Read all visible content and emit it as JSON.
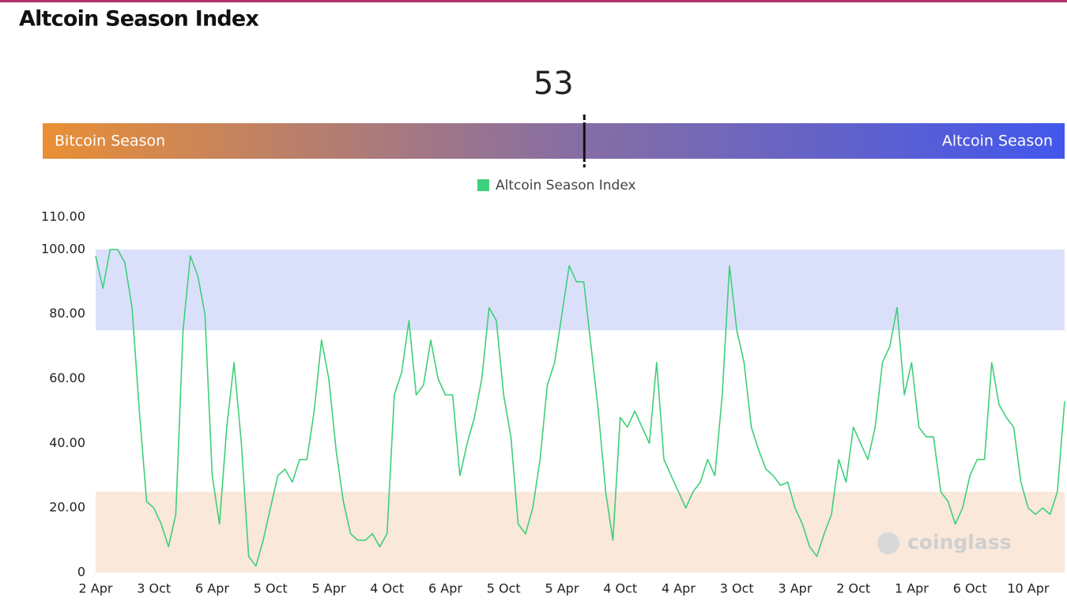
{
  "chart_data": {
    "type": "line",
    "title": "Altcoin Season Index",
    "gauge": {
      "value": 53,
      "range": [
        0,
        100
      ],
      "left_label": "Bitcoin Season",
      "right_label": "Altcoin Season",
      "colors": [
        "#e98f35",
        "#8a6fa0",
        "#4257ec"
      ]
    },
    "watermark": "coinglass",
    "categories": [
      "2 Apr",
      null,
      null,
      null,
      null,
      null,
      null,
      null,
      "3 Oct",
      null,
      null,
      null,
      null,
      null,
      null,
      null,
      "6 Apr",
      null,
      null,
      null,
      null,
      null,
      null,
      null,
      "5 Oct",
      null,
      null,
      null,
      null,
      null,
      null,
      null,
      "5 Apr",
      null,
      null,
      null,
      null,
      null,
      null,
      null,
      "4 Oct",
      null,
      null,
      null,
      null,
      null,
      null,
      null,
      "6 Apr",
      null,
      null,
      null,
      null,
      null,
      null,
      null,
      "5 Oct",
      null,
      null,
      null,
      null,
      null,
      null,
      null,
      "5 Apr",
      null,
      null,
      null,
      null,
      null,
      null,
      null,
      "4 Oct",
      null,
      null,
      null,
      null,
      null,
      null,
      null,
      "4 Apr",
      null,
      null,
      null,
      null,
      null,
      null,
      null,
      "3 Oct",
      null,
      null,
      null,
      null,
      null,
      null,
      null,
      "3 Apr",
      null,
      null,
      null,
      null,
      null,
      null,
      null,
      "2 Oct",
      null,
      null,
      null,
      null,
      null,
      null,
      null,
      "1 Apr",
      null,
      null,
      null,
      null,
      null,
      null,
      null,
      "6 Oct",
      null,
      null,
      null,
      null,
      null,
      null,
      null,
      "10 Apr",
      null,
      null,
      null,
      null,
      null
    ],
    "series": [
      {
        "name": "Altcoin Season Index",
        "color": "#3ecf7a",
        "values": [
          98,
          88,
          100,
          100,
          96,
          82,
          50,
          22,
          20,
          15,
          8,
          18,
          75,
          98,
          92,
          80,
          30,
          15,
          45,
          65,
          40,
          5,
          2,
          10,
          20,
          30,
          32,
          28,
          35,
          35,
          50,
          72,
          60,
          38,
          22,
          12,
          10,
          10,
          12,
          8,
          12,
          55,
          62,
          78,
          55,
          58,
          72,
          60,
          55,
          55,
          30,
          40,
          48,
          60,
          82,
          78,
          55,
          42,
          15,
          12,
          20,
          35,
          58,
          65,
          80,
          95,
          90,
          90,
          70,
          50,
          25,
          10,
          48,
          45,
          50,
          45,
          40,
          65,
          35,
          30,
          25,
          20,
          25,
          28,
          35,
          30,
          55,
          95,
          75,
          65,
          45,
          38,
          32,
          30,
          27,
          28,
          20,
          15,
          8,
          5,
          12,
          18,
          35,
          28,
          45,
          40,
          35,
          45,
          65,
          70,
          82,
          55,
          65,
          45,
          42,
          42,
          25,
          22,
          15,
          20,
          30,
          35,
          35,
          65,
          52,
          48,
          45,
          28,
          20,
          18,
          20,
          18,
          25,
          53
        ]
      }
    ],
    "bands": [
      {
        "from": 75,
        "to": 100,
        "color": "#dbe0fa"
      },
      {
        "from": 0,
        "to": 25,
        "color": "#fae8da"
      }
    ],
    "ylim": [
      0,
      110
    ],
    "yticks": [
      0,
      {
        "value": 20,
        "label": "20.00"
      },
      {
        "value": 40,
        "label": "40.00"
      },
      {
        "value": 60,
        "label": "60.00"
      },
      {
        "value": 80,
        "label": "80.00"
      },
      {
        "value": 100,
        "label": "100.00"
      },
      {
        "value": 110,
        "label": "110.00"
      }
    ],
    "legend": "top"
  }
}
